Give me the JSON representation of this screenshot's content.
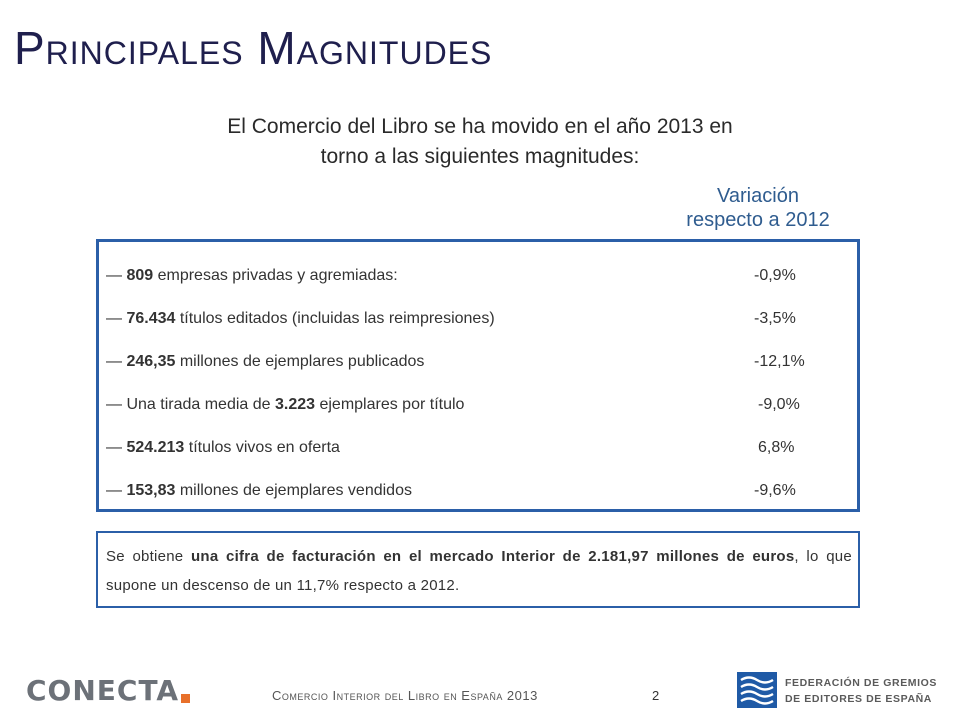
{
  "title": "Principales Magnitudes",
  "intro": {
    "line1": "El Comercio del Libro se ha movido en el año 2013 en",
    "line2": "torno a las siguientes magnitudes:"
  },
  "variation_header": {
    "line1": "Variación",
    "line2": "respecto a 2012"
  },
  "magnitudes": [
    {
      "dash": "—",
      "lead": "",
      "bold": "809",
      "text": " empresas privadas y agremiadas:",
      "variation": "-0,9%"
    },
    {
      "dash": "—",
      "lead": "",
      "bold": "76.434",
      "text": " títulos editados (incluidas las reimpresiones)",
      "variation": "-3,5%"
    },
    {
      "dash": "—",
      "lead": "",
      "bold": "246,35",
      "text": " millones de ejemplares publicados",
      "variation": "-12,1%"
    },
    {
      "dash": "—",
      "lead": "Una tirada media de ",
      "bold": "3.223",
      "text": " ejemplares por título",
      "variation": "-9,0%"
    },
    {
      "dash": "—",
      "lead": "",
      "bold": "524.213",
      "text": " títulos vivos en oferta",
      "variation": "6,8%"
    },
    {
      "dash": "—",
      "lead": "",
      "bold": "153,83",
      "text": " millones de ejemplares vendidos",
      "variation": "-9,6%"
    }
  ],
  "summary": {
    "part1": "Se obtiene ",
    "bold": "una cifra de facturación en el mercado Interior de 2.181,97 millones de euros",
    "part2": ", lo que supone un descenso de un 11,7% respecto a 2012."
  },
  "footer": {
    "logo_text": "CONECTA",
    "doc_title": "Comercio Interior del Libro en España 2013",
    "page_number": "2",
    "federation_line1": "FEDERACIÓN DE GREMIOS",
    "federation_line2": "DE EDITORES DE ESPAÑA"
  },
  "colors": {
    "title": "#1f1f4d",
    "border": "#2b5fa8",
    "variation_header": "#2f5c8f",
    "logo_accent": "#e8702a",
    "federation_blue": "#1f5aa6"
  }
}
